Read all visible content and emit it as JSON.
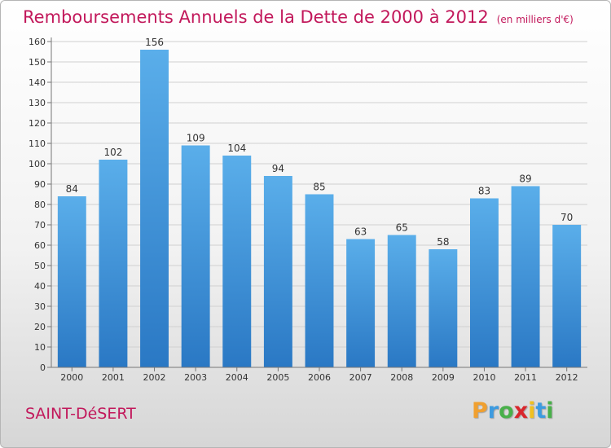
{
  "chart_data": {
    "type": "bar",
    "title": "Remboursements Annuels de la Dette de 2000 à 2012",
    "subtitle": "(en milliers d'€)",
    "xlabel": "",
    "ylabel": "",
    "categories": [
      "2000",
      "2001",
      "2002",
      "2003",
      "2004",
      "2005",
      "2006",
      "2007",
      "2008",
      "2009",
      "2010",
      "2011",
      "2012"
    ],
    "values": [
      84,
      102,
      156,
      109,
      104,
      94,
      85,
      63,
      65,
      58,
      83,
      89,
      70
    ],
    "ylim": [
      0,
      160
    ],
    "yticks": [
      "0",
      "10",
      "20",
      "30",
      "40",
      "50",
      "60",
      "70",
      "80",
      "90",
      "100",
      "110",
      "120",
      "130",
      "140",
      "150",
      "160"
    ],
    "grid": true,
    "bar_color": "#3a8fd8"
  },
  "footer": {
    "place": "SAINT-DéSERT",
    "logo": [
      "P",
      "r",
      "o",
      "x",
      "i",
      "t",
      "i"
    ],
    "logo_colors": [
      "#f0a030",
      "#3d9be0",
      "#49b04a",
      "#d9262c",
      "#f0c020",
      "#3d9be0",
      "#49b04a"
    ]
  },
  "colors": {
    "accent": "#c2185b"
  }
}
